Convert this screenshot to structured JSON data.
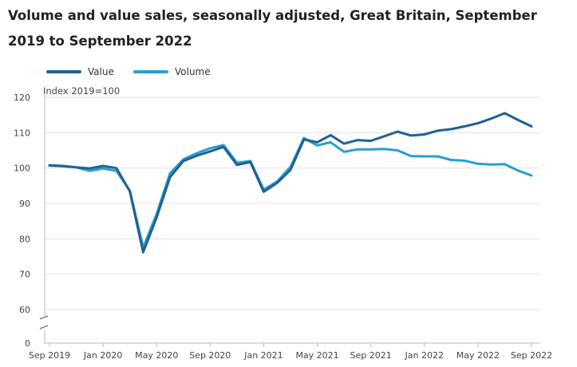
{
  "title": "Volume and value sales, seasonally adjusted, Great Britain, September 2019 to September 2022",
  "chart_data": {
    "type": "line",
    "title": "Volume and value sales, seasonally adjusted, Great Britain, September 2019 to September 2022",
    "ylabel": "Index 2019=100",
    "xlabel": "",
    "ylim": [
      0,
      120
    ],
    "y_axis_break": "between 0 and 60",
    "yticks": [
      "0",
      "60",
      "70",
      "80",
      "90",
      "100",
      "110",
      "120"
    ],
    "xticks": [
      "Sep 2019",
      "Jan 2020",
      "May 2020",
      "Sep 2020",
      "Jan 2021",
      "May 2021",
      "Sep 2021",
      "Jan 2022",
      "May 2022",
      "Sep 2022"
    ],
    "grid": "horizontal",
    "legend_position": "top-left",
    "x": [
      "Sep 2019",
      "Oct 2019",
      "Nov 2019",
      "Dec 2019",
      "Jan 2020",
      "Feb 2020",
      "Mar 2020",
      "Apr 2020",
      "May 2020",
      "Jun 2020",
      "Jul 2020",
      "Aug 2020",
      "Sep 2020",
      "Oct 2020",
      "Nov 2020",
      "Dec 2020",
      "Jan 2021",
      "Feb 2021",
      "Mar 2021",
      "Apr 2021",
      "May 2021",
      "Jun 2021",
      "Jul 2021",
      "Aug 2021",
      "Sep 2021",
      "Oct 2021",
      "Nov 2021",
      "Dec 2021",
      "Jan 2022",
      "Feb 2022",
      "Mar 2022",
      "Apr 2022",
      "May 2022",
      "Jun 2022",
      "Jul 2022",
      "Aug 2022",
      "Sep 2022"
    ],
    "series": [
      {
        "name": "Value",
        "color": "#206095",
        "values": [
          100.8,
          100.6,
          100.2,
          99.9,
          100.6,
          100.0,
          93.4,
          76.2,
          86.0,
          97.4,
          102.0,
          103.5,
          104.7,
          106.0,
          100.9,
          101.7,
          93.3,
          95.8,
          99.5,
          108.1,
          107.3,
          109.3,
          106.9,
          107.9,
          107.7,
          109.0,
          110.3,
          109.2,
          109.5,
          110.6,
          111.0,
          111.8,
          112.7,
          114.0,
          115.5,
          113.6,
          111.8
        ]
      },
      {
        "name": "Volume",
        "color": "#27a0cc",
        "values": [
          100.7,
          100.5,
          100.2,
          99.2,
          99.9,
          99.2,
          93.6,
          77.5,
          87.0,
          98.5,
          102.5,
          104.2,
          105.6,
          106.5,
          101.5,
          102.0,
          93.9,
          96.2,
          100.3,
          108.5,
          106.4,
          107.3,
          104.6,
          105.3,
          105.3,
          105.4,
          105.0,
          103.4,
          103.3,
          103.3,
          102.3,
          102.1,
          101.2,
          101.0,
          101.1,
          99.3,
          97.9
        ]
      }
    ]
  }
}
